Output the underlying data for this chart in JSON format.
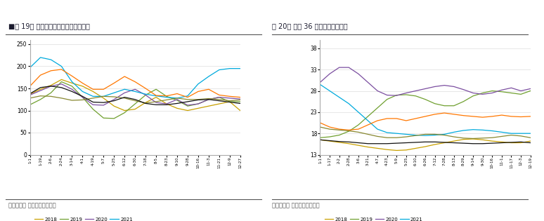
{
  "fig19_title": "■图 19： 寿光蔬菜价格指数（总指数）",
  "fig20_title": "图 20： 猪肉 36 个城市平均零售价",
  "source_text": "数据来源： 銀河期货，同花顺",
  "fig19_xlabel_ticks": [
    "1-1",
    "1-19",
    "2-6",
    "2-24",
    "3-14",
    "4-1",
    "4-19",
    "5-7",
    "5-25",
    "6-12",
    "6-30",
    "7-18",
    "8-5",
    "8-23",
    "9-10",
    "9-28",
    "10-16",
    "11-3",
    "11-21",
    "12-9",
    "12-27"
  ],
  "fig20_xlabel_ticks": [
    "1-1",
    "1-17",
    "2-2",
    "2-28",
    "3-6",
    "3-21",
    "4-7",
    "4-23",
    "5-9",
    "5-25",
    "6-10",
    "6-26",
    "7-12",
    "7-28",
    "8-13",
    "8-29",
    "9-14",
    "9-30",
    "10-16",
    "11-1",
    "11-17",
    "12-3",
    "12-19"
  ],
  "fig19_ylim": [
    0,
    260
  ],
  "fig19_yticks": [
    0,
    50,
    100,
    150,
    200,
    250
  ],
  "fig20_ylim": [
    13,
    40
  ],
  "fig20_yticks": [
    13,
    18,
    23,
    28,
    33,
    38
  ],
  "colors_2018": "#C8A000",
  "colors_2019": "#70A030",
  "colors_2020": "#7B4EA0",
  "colors_2021": "#00AADD",
  "colors_2022": "#FF7700",
  "colors_2023": "#888830",
  "colors_2024": "#111111",
  "fig19_n_points": 21,
  "fig19_2018": [
    137,
    148,
    157,
    170,
    162,
    155,
    143,
    128,
    110,
    100,
    103,
    118,
    130,
    115,
    105,
    100,
    105,
    110,
    115,
    120,
    100
  ],
  "fig19_2019": [
    113,
    125,
    140,
    165,
    155,
    130,
    103,
    83,
    82,
    95,
    115,
    135,
    148,
    132,
    123,
    110,
    115,
    125,
    130,
    120,
    120
  ],
  "fig19_2020": [
    135,
    145,
    155,
    160,
    148,
    130,
    113,
    112,
    125,
    140,
    148,
    135,
    118,
    115,
    125,
    112,
    115,
    125,
    130,
    128,
    126
  ],
  "fig19_2021": [
    197,
    220,
    215,
    200,
    165,
    143,
    132,
    132,
    140,
    148,
    143,
    137,
    133,
    130,
    128,
    133,
    160,
    177,
    192,
    195,
    195
  ],
  "fig19_2022": [
    155,
    180,
    190,
    193,
    178,
    162,
    148,
    148,
    162,
    177,
    165,
    150,
    134,
    133,
    138,
    130,
    143,
    148,
    135,
    132,
    130
  ],
  "fig19_2023": [
    128,
    133,
    132,
    128,
    123,
    124,
    128,
    132,
    131,
    128,
    122,
    117,
    120,
    124,
    128,
    125,
    125,
    127,
    125,
    122,
    124
  ],
  "fig19_2024": [
    138,
    152,
    155,
    152,
    143,
    132,
    119,
    118,
    122,
    130,
    125,
    116,
    113,
    113,
    116,
    120,
    124,
    125,
    122,
    119,
    116
  ],
  "fig20_n_points": 23,
  "fig20_2018": [
    16.5,
    16.2,
    15.9,
    15.6,
    15.2,
    14.8,
    14.5,
    14.2,
    14.0,
    14.1,
    14.5,
    14.9,
    15.4,
    15.8,
    16.2,
    16.6,
    16.7,
    16.5,
    16.2,
    16.0,
    15.8,
    15.8,
    16.2
  ],
  "fig20_2019": [
    17.0,
    17.2,
    17.6,
    18.5,
    20.0,
    22.0,
    24.0,
    26.0,
    27.0,
    27.1,
    26.8,
    26.0,
    25.0,
    24.5,
    24.5,
    25.5,
    26.8,
    27.5,
    28.0,
    27.8,
    27.5,
    27.2,
    28.0
  ],
  "fig20_2020": [
    30.0,
    32.0,
    33.5,
    33.5,
    32.0,
    30.0,
    28.0,
    27.0,
    26.9,
    27.5,
    28.0,
    28.5,
    29.0,
    29.3,
    29.0,
    28.3,
    27.5,
    27.2,
    27.5,
    28.2,
    28.7,
    28.0,
    28.5
  ],
  "fig20_2021": [
    29.5,
    28.0,
    26.5,
    25.0,
    23.0,
    21.0,
    19.0,
    18.2,
    18.0,
    17.8,
    17.6,
    17.5,
    17.6,
    17.8,
    18.3,
    18.7,
    18.9,
    18.8,
    18.6,
    18.3,
    18.0,
    18.0,
    18.0
  ],
  "fig20_2022": [
    20.5,
    19.5,
    19.0,
    18.8,
    19.0,
    20.0,
    21.0,
    21.5,
    21.5,
    21.0,
    21.5,
    22.0,
    22.5,
    22.8,
    22.5,
    22.2,
    22.0,
    21.8,
    22.0,
    22.3,
    22.0,
    21.9,
    22.0
  ],
  "fig20_2023": [
    19.5,
    19.0,
    18.8,
    18.6,
    18.3,
    17.8,
    17.3,
    17.0,
    17.0,
    17.2,
    17.5,
    17.8,
    17.8,
    17.6,
    17.2,
    16.9,
    16.8,
    16.9,
    17.0,
    17.3,
    17.6,
    17.4,
    17.0
  ],
  "fig20_2024": [
    16.5,
    16.3,
    16.1,
    16.0,
    15.8,
    15.6,
    15.6,
    15.6,
    15.7,
    15.8,
    15.9,
    16.0,
    16.0,
    15.9,
    15.8,
    15.7,
    15.6,
    15.6,
    15.7,
    15.8,
    15.9,
    16.0,
    15.8
  ]
}
